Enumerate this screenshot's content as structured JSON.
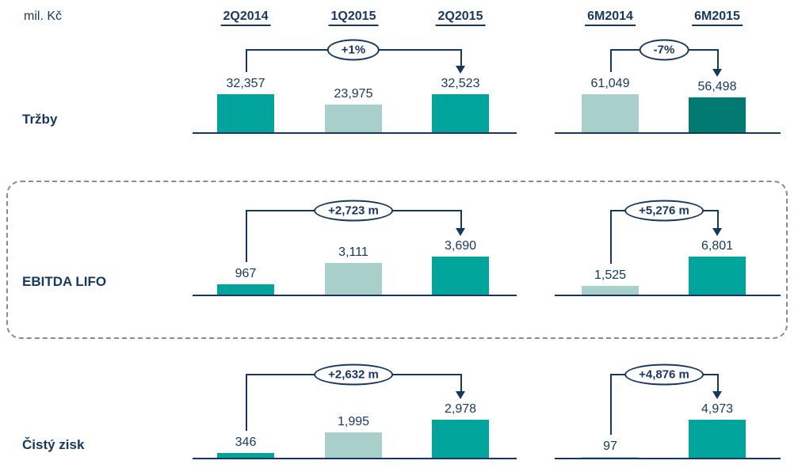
{
  "header": {
    "unit": "mil. Kč",
    "columns": [
      "2Q2014",
      "1Q2015",
      "2Q2015",
      "6M2014",
      "6M2015"
    ]
  },
  "colors": {
    "teal": "#00A49A",
    "light_teal": "#A8CFC9",
    "dark_teal": "#007A70",
    "navy": "#17375E"
  },
  "chart_data": {
    "type": "bar",
    "title": "",
    "ylabel": "mil. Kč",
    "legend": "none",
    "grid": false,
    "categories": [
      "2Q2014",
      "1Q2015",
      "2Q2015",
      "6M2014",
      "6M2015"
    ],
    "rows": [
      {
        "label": "Tržby",
        "highlighted": false,
        "quarterly": {
          "values": [
            32357,
            23975,
            32523
          ],
          "labels": [
            "32,357",
            "23,975",
            "32,523"
          ],
          "colors": [
            "teal",
            "light_teal",
            "teal"
          ],
          "change": "+1%"
        },
        "halfyear": {
          "values": [
            61049,
            56498
          ],
          "labels": [
            "61,049",
            "56,498"
          ],
          "colors": [
            "light_teal",
            "dark_teal"
          ],
          "change": "-7%"
        }
      },
      {
        "label": "EBITDA LIFO",
        "highlighted": true,
        "quarterly": {
          "values": [
            967,
            3111,
            3690
          ],
          "labels": [
            "967",
            "3,111",
            "3,690"
          ],
          "colors": [
            "teal",
            "light_teal",
            "teal"
          ],
          "change": "+2,723 m"
        },
        "halfyear": {
          "values": [
            1525,
            6801
          ],
          "labels": [
            "1,525",
            "6,801"
          ],
          "colors": [
            "light_teal",
            "teal"
          ],
          "change": "+5,276 m"
        }
      },
      {
        "label": "Čistý zisk",
        "highlighted": false,
        "quarterly": {
          "values": [
            346,
            1995,
            2978
          ],
          "labels": [
            "346",
            "1,995",
            "2,978"
          ],
          "colors": [
            "teal",
            "light_teal",
            "teal"
          ],
          "change": "+2,632 m"
        },
        "halfyear": {
          "values": [
            97,
            4973
          ],
          "labels": [
            "97",
            "4,973"
          ],
          "colors": [
            "light_teal",
            "teal"
          ],
          "change": "+4,876 m"
        }
      }
    ]
  }
}
